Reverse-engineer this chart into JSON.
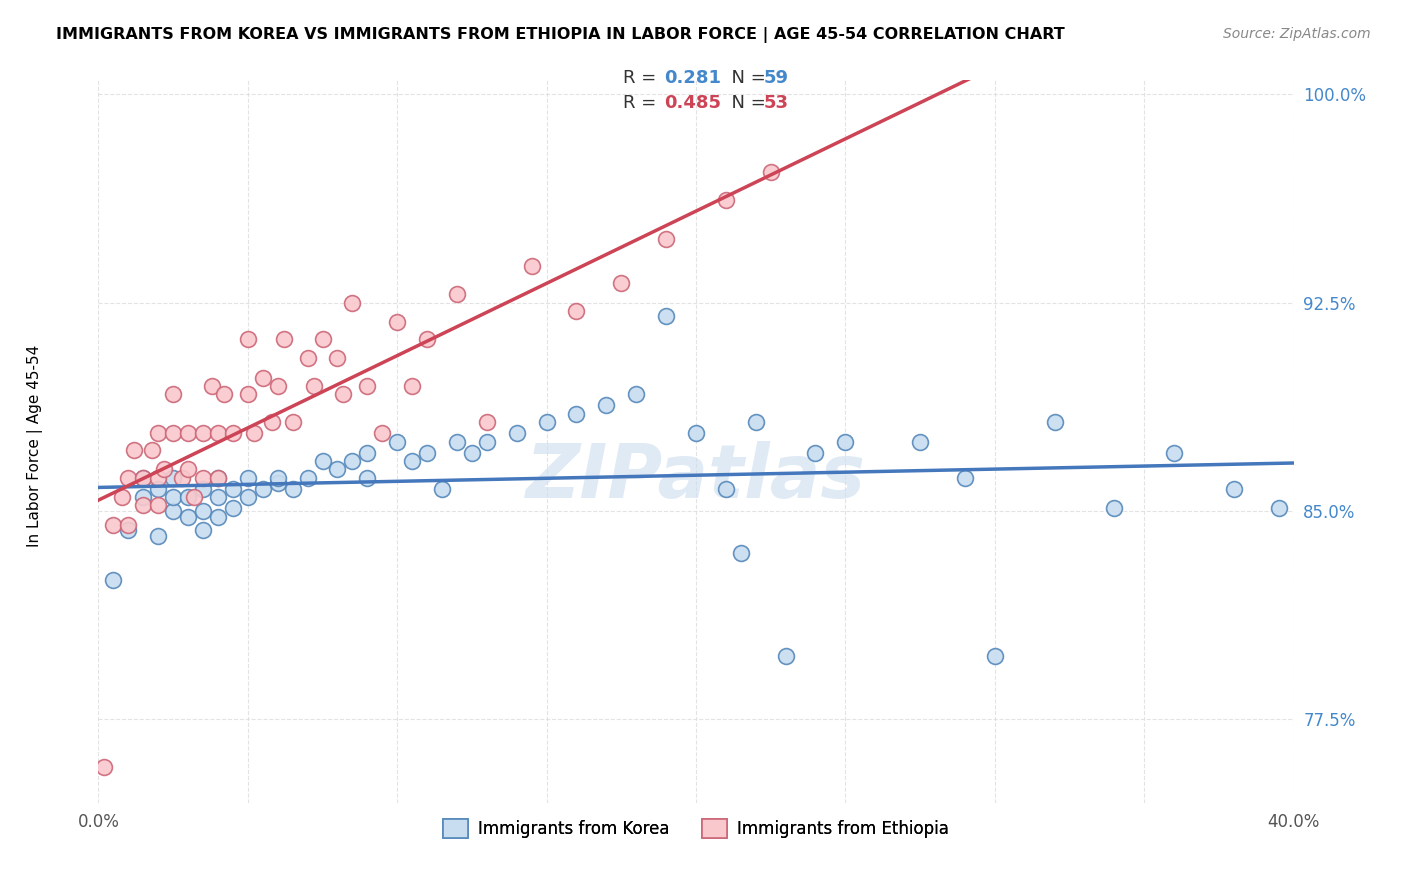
{
  "title": "IMMIGRANTS FROM KOREA VS IMMIGRANTS FROM ETHIOPIA IN LABOR FORCE | AGE 45-54 CORRELATION CHART",
  "source": "Source: ZipAtlas.com",
  "ylabel": "In Labor Force | Age 45-54",
  "xlim": [
    0.0,
    0.4
  ],
  "ylim": [
    0.745,
    1.005
  ],
  "xticks": [
    0.0,
    0.05,
    0.1,
    0.15,
    0.2,
    0.25,
    0.3,
    0.35,
    0.4
  ],
  "xticklabels": [
    "0.0%",
    "",
    "",
    "",
    "",
    "",
    "",
    "",
    "40.0%"
  ],
  "yticks": [
    0.775,
    0.85,
    0.925,
    1.0
  ],
  "yticklabels": [
    "77.5%",
    "85.0%",
    "92.5%",
    "100.0%"
  ],
  "korea_color": "#c8ddf0",
  "korea_edge": "#5588bb",
  "ethiopia_color": "#f9c8cc",
  "ethiopia_edge": "#cc6677",
  "korea_line_color": "#4477bb",
  "ethiopia_line_color": "#cc4455",
  "watermark": "ZIPatlas",
  "korea_R": 0.281,
  "korea_N": 59,
  "ethiopia_R": 0.485,
  "ethiopia_N": 53,
  "korea_x": [
    0.005,
    0.01,
    0.015,
    0.015,
    0.02,
    0.02,
    0.025,
    0.025,
    0.025,
    0.03,
    0.03,
    0.035,
    0.035,
    0.035,
    0.04,
    0.04,
    0.04,
    0.045,
    0.045,
    0.05,
    0.05,
    0.055,
    0.06,
    0.06,
    0.065,
    0.07,
    0.075,
    0.08,
    0.085,
    0.09,
    0.09,
    0.1,
    0.105,
    0.11,
    0.115,
    0.12,
    0.125,
    0.13,
    0.14,
    0.15,
    0.16,
    0.17,
    0.18,
    0.19,
    0.2,
    0.21,
    0.215,
    0.22,
    0.23,
    0.24,
    0.25,
    0.275,
    0.29,
    0.3,
    0.32,
    0.34,
    0.36,
    0.38,
    0.395
  ],
  "korea_y": [
    0.825,
    0.843,
    0.855,
    0.862,
    0.841,
    0.858,
    0.85,
    0.855,
    0.862,
    0.848,
    0.855,
    0.843,
    0.85,
    0.858,
    0.848,
    0.855,
    0.862,
    0.851,
    0.858,
    0.855,
    0.862,
    0.858,
    0.86,
    0.862,
    0.858,
    0.862,
    0.868,
    0.865,
    0.868,
    0.871,
    0.862,
    0.875,
    0.868,
    0.871,
    0.858,
    0.875,
    0.871,
    0.875,
    0.878,
    0.882,
    0.885,
    0.888,
    0.892,
    0.92,
    0.878,
    0.858,
    0.835,
    0.882,
    0.798,
    0.871,
    0.875,
    0.875,
    0.862,
    0.798,
    0.882,
    0.851,
    0.871,
    0.858,
    0.851
  ],
  "ethiopia_x": [
    0.002,
    0.005,
    0.008,
    0.01,
    0.01,
    0.012,
    0.015,
    0.015,
    0.018,
    0.02,
    0.02,
    0.02,
    0.022,
    0.025,
    0.025,
    0.028,
    0.03,
    0.03,
    0.032,
    0.035,
    0.035,
    0.038,
    0.04,
    0.04,
    0.042,
    0.045,
    0.05,
    0.05,
    0.052,
    0.055,
    0.058,
    0.06,
    0.062,
    0.065,
    0.07,
    0.072,
    0.075,
    0.08,
    0.082,
    0.085,
    0.09,
    0.095,
    0.1,
    0.105,
    0.11,
    0.12,
    0.13,
    0.145,
    0.16,
    0.175,
    0.19,
    0.21,
    0.225
  ],
  "ethiopia_y": [
    0.758,
    0.845,
    0.855,
    0.845,
    0.862,
    0.872,
    0.852,
    0.862,
    0.872,
    0.852,
    0.862,
    0.878,
    0.865,
    0.892,
    0.878,
    0.862,
    0.878,
    0.865,
    0.855,
    0.878,
    0.862,
    0.895,
    0.878,
    0.862,
    0.892,
    0.878,
    0.892,
    0.912,
    0.878,
    0.898,
    0.882,
    0.895,
    0.912,
    0.882,
    0.905,
    0.895,
    0.912,
    0.905,
    0.892,
    0.925,
    0.895,
    0.878,
    0.918,
    0.895,
    0.912,
    0.928,
    0.882,
    0.938,
    0.922,
    0.932,
    0.948,
    0.962,
    0.972
  ]
}
